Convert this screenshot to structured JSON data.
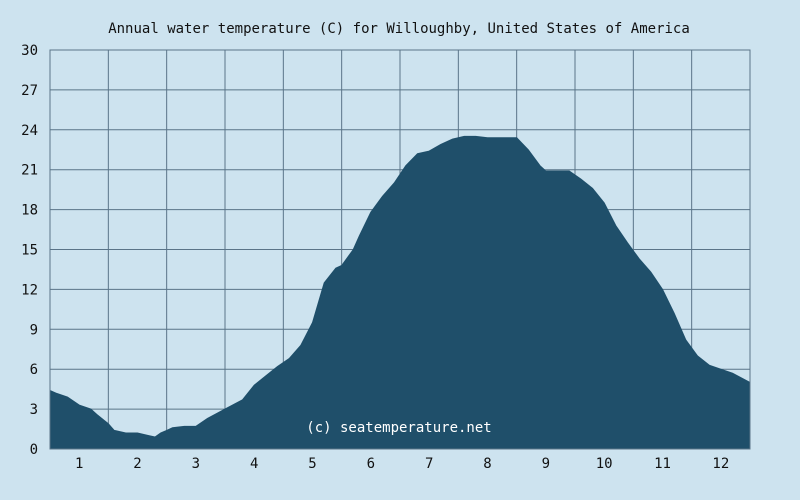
{
  "chart_data": {
    "type": "area",
    "title": "Annual water temperature (C) for Willoughby, United States of America",
    "xlabel": "",
    "ylabel": "",
    "xlim": [
      0.5,
      12.5
    ],
    "ylim": [
      0,
      30
    ],
    "x_ticks": [
      1,
      2,
      3,
      4,
      5,
      6,
      7,
      8,
      9,
      10,
      11,
      12
    ],
    "x_tick_labels": [
      "1",
      "2",
      "3",
      "4",
      "5",
      "6",
      "7",
      "8",
      "9",
      "10",
      "11",
      "12"
    ],
    "y_ticks": [
      0,
      3,
      6,
      9,
      12,
      15,
      18,
      21,
      24,
      27,
      30
    ],
    "y_tick_labels": [
      "0",
      "3",
      "6",
      "9",
      "12",
      "15",
      "18",
      "21",
      "24",
      "27",
      "30"
    ],
    "grid": true,
    "watermark": "(c) seatemperature.net",
    "series": [
      {
        "x": [
          0.5,
          0.6,
          0.8,
          1.0,
          1.2,
          1.3,
          1.5,
          1.6,
          1.8,
          2.0,
          2.2,
          2.3,
          2.4,
          2.5,
          2.6,
          2.8,
          3.0,
          3.2,
          3.5,
          3.8,
          4.0,
          4.2,
          4.4,
          4.6,
          4.8,
          5.0,
          5.2,
          5.4,
          5.5,
          5.7,
          5.8,
          6.0,
          6.2,
          6.4,
          6.6,
          6.8,
          7.0,
          7.2,
          7.4,
          7.6,
          7.8,
          8.0,
          8.2,
          8.5,
          8.7,
          8.9,
          9.0,
          9.2,
          9.3,
          9.4,
          9.6,
          9.8,
          10.0,
          10.2,
          10.4,
          10.6,
          10.8,
          11.0,
          11.2,
          11.4,
          11.6,
          11.8,
          12.0,
          12.2,
          12.5
        ],
        "y": [
          4.4,
          4.2,
          3.9,
          3.3,
          3.0,
          2.6,
          1.9,
          1.4,
          1.2,
          1.2,
          1.0,
          0.9,
          1.2,
          1.4,
          1.6,
          1.7,
          1.7,
          2.3,
          3.0,
          3.7,
          4.8,
          5.5,
          6.2,
          6.8,
          7.8,
          9.5,
          12.5,
          13.6,
          13.8,
          15.0,
          16.0,
          17.8,
          19.0,
          20.0,
          21.3,
          22.2,
          22.4,
          22.9,
          23.3,
          23.5,
          23.5,
          23.4,
          23.4,
          23.4,
          22.5,
          21.3,
          20.9,
          20.9,
          20.9,
          20.9,
          20.3,
          19.6,
          18.5,
          16.8,
          15.5,
          14.3,
          13.3,
          12.0,
          10.2,
          8.2,
          7.0,
          6.3,
          6.0,
          5.7,
          5.0
        ]
      }
    ]
  },
  "colors": {
    "background": "#cde3ef",
    "plot_background": "#cde3ef",
    "area_fill": "#1f4f6a",
    "grid": "#5a7488",
    "watermark_text": "#ffffff"
  }
}
